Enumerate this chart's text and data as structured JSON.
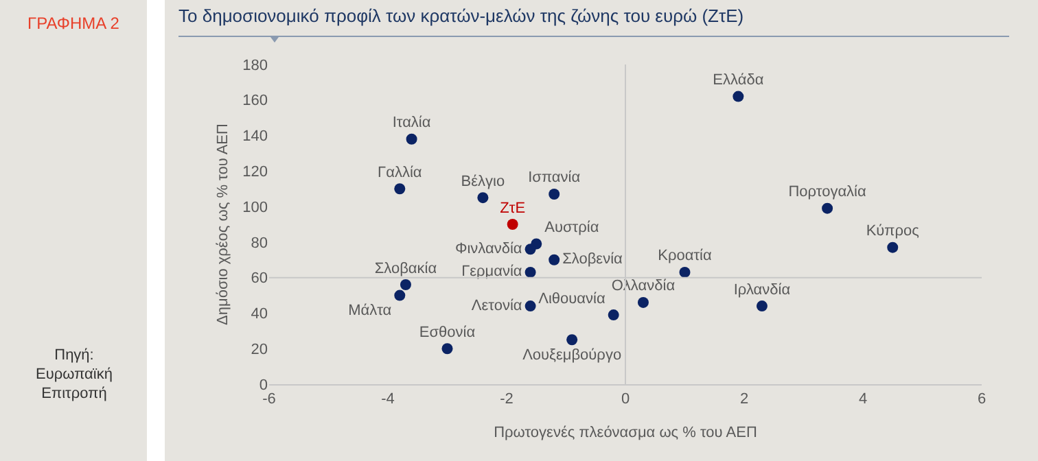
{
  "chart_data": {
    "type": "scatter",
    "title": "Το δημοσιονομικό προφίλ των κρατών-μελών της ζώνης του ευρώ (ΖτΕ)",
    "xlabel": "Πρωτογενές πλεόνασμα ως % του ΑΕΠ",
    "ylabel": "Δημόσιο χρέος ως % του ΑΕΠ",
    "annotations": [
      "ΓΡΑΦΗΜΑ 2",
      "Πηγή: Ευρωπαϊκή Επιτροπή"
    ],
    "series": [
      {
        "name": "Ελλάδα",
        "color": "#0b2364",
        "x": [
          1.9
        ],
        "values": [
          162
        ]
      },
      {
        "name": "Ιταλία",
        "color": "#0b2364",
        "x": [
          -3.6
        ],
        "values": [
          138
        ]
      },
      {
        "name": "Γαλλία",
        "color": "#0b2364",
        "x": [
          -3.8
        ],
        "values": [
          110
        ]
      },
      {
        "name": "Βέλγιο",
        "color": "#0b2364",
        "x": [
          -2.4
        ],
        "values": [
          105
        ]
      },
      {
        "name": "Ισπανία",
        "color": "#0b2364",
        "x": [
          -1.2
        ],
        "values": [
          107
        ]
      },
      {
        "name": "ΖτΕ",
        "color": "#c00000",
        "x": [
          -1.9
        ],
        "values": [
          90
        ]
      },
      {
        "name": "Αυστρία",
        "color": "#0b2364",
        "x": [
          -1.5
        ],
        "values": [
          79
        ]
      },
      {
        "name": "Φινλανδία",
        "color": "#0b2364",
        "x": [
          -1.6
        ],
        "values": [
          76
        ]
      },
      {
        "name": "Σλοβενία",
        "color": "#0b2364",
        "x": [
          -1.2
        ],
        "values": [
          70
        ]
      },
      {
        "name": "Γερμανία",
        "color": "#0b2364",
        "x": [
          -1.6
        ],
        "values": [
          63
        ]
      },
      {
        "name": "Σλοβακία",
        "color": "#0b2364",
        "x": [
          -3.7
        ],
        "values": [
          56
        ]
      },
      {
        "name": "Μάλτα",
        "color": "#0b2364",
        "x": [
          -3.8
        ],
        "values": [
          50
        ]
      },
      {
        "name": "Λετονία",
        "color": "#0b2364",
        "x": [
          -1.6
        ],
        "values": [
          44
        ]
      },
      {
        "name": "Λιθουανία",
        "color": "#0b2364",
        "x": [
          -0.2
        ],
        "values": [
          39
        ]
      },
      {
        "name": "Ολλανδία",
        "color": "#0b2364",
        "x": [
          0.3
        ],
        "values": [
          46
        ]
      },
      {
        "name": "Κροατία",
        "color": "#0b2364",
        "x": [
          1.0
        ],
        "values": [
          63
        ]
      },
      {
        "name": "Ιρλανδία",
        "color": "#0b2364",
        "x": [
          2.3
        ],
        "values": [
          44
        ]
      },
      {
        "name": "Λουξεμβούργο",
        "color": "#0b2364",
        "x": [
          -0.9
        ],
        "values": [
          25
        ]
      },
      {
        "name": "Εσθονία",
        "color": "#0b2364",
        "x": [
          -3.0
        ],
        "values": [
          20
        ]
      },
      {
        "name": "Πορτογαλία",
        "color": "#0b2364",
        "x": [
          3.4
        ],
        "values": [
          99
        ]
      },
      {
        "name": "Κύπρος",
        "color": "#0b2364",
        "x": [
          4.5
        ],
        "values": [
          77
        ]
      }
    ],
    "xlim": [
      -6,
      6
    ],
    "xticks": [
      -6,
      -4,
      -2,
      0,
      2,
      4,
      6
    ],
    "ylim": [
      0,
      180
    ],
    "yticks": [
      0,
      20,
      40,
      60,
      80,
      100,
      120,
      140,
      160,
      180
    ],
    "ref_lines": [
      {
        "axis": "x",
        "value": 0,
        "color": "#c8c8c8"
      },
      {
        "axis": "y",
        "value": 60,
        "color": "#c8c8c8"
      }
    ],
    "grid": false,
    "legend": false,
    "marker": "circle"
  }
}
